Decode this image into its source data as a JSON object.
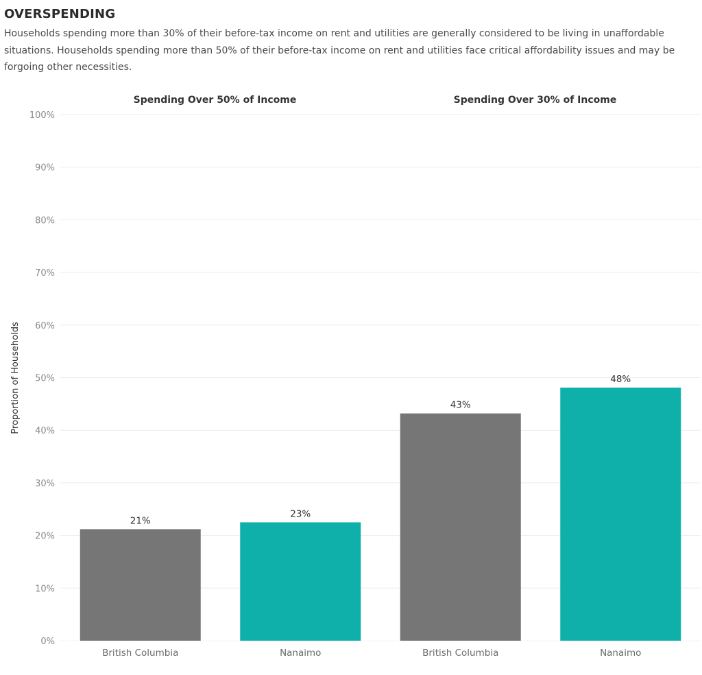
{
  "header": {
    "title": "OVERSPENDING",
    "subtitle": "Households spending more than 30% of their before-tax income on rent and utilities are generally considered to be living in unaffordable situations. Households spending more than 50% of their before-tax income on rent and utilities face critical affordability issues and may be forgoing other necessities."
  },
  "chart_data": {
    "type": "bar",
    "ylabel": "Proportion of Households",
    "ylim": [
      0,
      100
    ],
    "yticks": [
      "0%",
      "10%",
      "20%",
      "30%",
      "40%",
      "50%",
      "60%",
      "70%",
      "80%",
      "90%",
      "100%"
    ],
    "grid": true,
    "panels": [
      {
        "title": "Spending Over 50% of Income",
        "categories": [
          "British Columbia",
          "Nanaimo"
        ],
        "values": [
          21.2,
          22.5
        ],
        "labels": [
          "21%",
          "23%"
        ]
      },
      {
        "title": "Spending Over 30% of Income",
        "categories": [
          "British Columbia",
          "Nanaimo"
        ],
        "values": [
          43.2,
          48.1
        ],
        "labels": [
          "43%",
          "48%"
        ]
      }
    ],
    "colors": {
      "British Columbia": "#767676",
      "Nanaimo": "#0fb0aa"
    }
  }
}
